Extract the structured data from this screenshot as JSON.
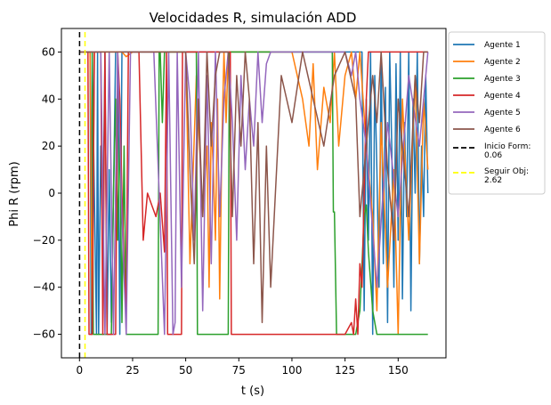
{
  "chart_data": {
    "type": "line",
    "title": "Velocidades R, simulación ADD",
    "xlabel": "t (s)",
    "ylabel": "Phi R (rpm)",
    "xlim": [
      -8.5,
      172.5
    ],
    "ylim": [
      -70,
      70
    ],
    "xticks": [
      0,
      25,
      50,
      75,
      100,
      125,
      150
    ],
    "yticks": [
      -60,
      -40,
      -20,
      0,
      20,
      40,
      60
    ],
    "grid": false,
    "legend_position": "outside-right",
    "series": [
      {
        "name": "Agente 1",
        "color": "#1f77b4",
        "style": "solid",
        "x": [
          0,
          5,
          5.5,
          6,
          8,
          8.5,
          9,
          10,
          11,
          12,
          13,
          14,
          15,
          16,
          17,
          18,
          19,
          20,
          22,
          25,
          30,
          40,
          60,
          80,
          100,
          120,
          133,
          134,
          135,
          136,
          137,
          138,
          139,
          140,
          141,
          142,
          143,
          144,
          145,
          146,
          147,
          148,
          149,
          150,
          151,
          152,
          153,
          154,
          155,
          156,
          157,
          158,
          159,
          160,
          161,
          162,
          163,
          164
        ],
        "y": [
          60,
          60,
          -60,
          60,
          -60,
          60,
          -60,
          20,
          -20,
          60,
          -60,
          10,
          -55,
          0,
          60,
          60,
          -60,
          60,
          60,
          60,
          60,
          60,
          60,
          60,
          60,
          60,
          60,
          -50,
          40,
          -20,
          60,
          -60,
          50,
          10,
          -40,
          60,
          -30,
          45,
          -55,
          60,
          20,
          -40,
          55,
          -20,
          60,
          -45,
          30,
          -10,
          60,
          -50,
          40,
          0,
          60,
          -30,
          20,
          -10,
          50,
          0
        ]
      },
      {
        "name": "Agente 2",
        "color": "#ff7f0e",
        "style": "solid",
        "x": [
          0,
          5,
          6,
          7,
          8,
          9,
          20,
          22,
          25,
          30,
          50,
          52,
          55,
          58,
          60,
          61,
          62,
          63,
          64,
          65,
          66,
          67,
          68,
          69,
          70,
          72,
          80,
          90,
          100,
          105,
          108,
          110,
          112,
          115,
          118,
          120,
          122,
          125,
          128,
          130,
          132,
          135,
          138,
          140,
          142,
          145,
          148,
          150,
          152,
          155,
          158,
          160,
          162,
          164
        ],
        "y": [
          60,
          60,
          -60,
          60,
          60,
          60,
          60,
          58,
          60,
          60,
          60,
          -30,
          50,
          -10,
          20,
          -40,
          30,
          10,
          -20,
          40,
          -45,
          20,
          60,
          30,
          60,
          60,
          60,
          60,
          60,
          40,
          20,
          55,
          10,
          45,
          30,
          60,
          20,
          50,
          60,
          40,
          60,
          20,
          -10,
          -50,
          30,
          -40,
          10,
          -60,
          40,
          -20,
          50,
          -30,
          40,
          10
        ]
      },
      {
        "name": "Agente 3",
        "color": "#2ca02c",
        "style": "solid",
        "x": [
          0,
          6,
          6.5,
          15,
          16,
          17,
          18,
          19,
          20,
          21,
          22,
          22.5,
          30,
          37,
          37.5,
          38,
          39,
          40,
          50,
          55,
          55.5,
          60,
          65,
          70,
          70.5,
          71,
          80,
          90,
          100,
          110,
          119,
          119.5,
          120,
          121,
          121.5,
          125,
          130,
          132,
          134,
          135,
          136,
          138,
          140,
          145,
          150,
          155,
          160,
          164
        ],
        "y": [
          60,
          60,
          -60,
          -60,
          0,
          40,
          -20,
          30,
          -55,
          20,
          -60,
          -60,
          -60,
          -60,
          60,
          60,
          30,
          60,
          60,
          60,
          -60,
          -60,
          -60,
          -60,
          60,
          60,
          60,
          60,
          60,
          60,
          60,
          -8,
          -8,
          -60,
          -60,
          -60,
          -60,
          -50,
          -10,
          -5,
          -25,
          -50,
          -60,
          -60,
          -60,
          -60,
          -60,
          -60
        ]
      },
      {
        "name": "Agente 4",
        "color": "#d62728",
        "style": "solid",
        "x": [
          0,
          4,
          4.5,
          6,
          7,
          7.5,
          10,
          11,
          12,
          13,
          13.5,
          17,
          18,
          19,
          20,
          21,
          22,
          23,
          24,
          25,
          28,
          30,
          32,
          34,
          36,
          38,
          40,
          41,
          41.5,
          48,
          48.5,
          55,
          60,
          65,
          68,
          70,
          71,
          71.5,
          75,
          77,
          79,
          80,
          85,
          90,
          100,
          110,
          120,
          125,
          128,
          129,
          130,
          131,
          132,
          133,
          134,
          135,
          136,
          138,
          140,
          145,
          150,
          155,
          160,
          164
        ],
        "y": [
          60,
          60,
          -60,
          -60,
          60,
          60,
          60,
          -60,
          60,
          -60,
          -60,
          -60,
          60,
          40,
          0,
          -30,
          -50,
          60,
          60,
          60,
          60,
          -20,
          0,
          -5,
          -10,
          0,
          -25,
          60,
          -60,
          -60,
          60,
          60,
          60,
          60,
          60,
          60,
          60,
          -60,
          -60,
          -60,
          -60,
          -60,
          -60,
          -60,
          -60,
          -60,
          -60,
          -60,
          -55,
          -60,
          -45,
          -60,
          -30,
          -40,
          0,
          40,
          60,
          60,
          60,
          60,
          60,
          60,
          60,
          60
        ]
      },
      {
        "name": "Agente 5",
        "color": "#9467bd",
        "style": "solid",
        "x": [
          0,
          10,
          12,
          14,
          16,
          18,
          20,
          22,
          24,
          26,
          28,
          30,
          35,
          40,
          42,
          44,
          45,
          46,
          48,
          50,
          52,
          54,
          56,
          58,
          60,
          62,
          64,
          66,
          68,
          70,
          72,
          74,
          76,
          78,
          80,
          82,
          84,
          86,
          88,
          90,
          95,
          100,
          105,
          110,
          115,
          120,
          125,
          128,
          130,
          132,
          135,
          140,
          145,
          150,
          155,
          160,
          164
        ],
        "y": [
          60,
          60,
          -60,
          60,
          -60,
          60,
          -10,
          -60,
          60,
          60,
          60,
          60,
          60,
          -60,
          60,
          -60,
          -55,
          60,
          -40,
          60,
          40,
          -20,
          60,
          -50,
          50,
          -30,
          60,
          -10,
          40,
          60,
          30,
          -20,
          50,
          10,
          40,
          20,
          60,
          30,
          55,
          60,
          60,
          60,
          60,
          60,
          60,
          60,
          60,
          50,
          60,
          40,
          20,
          -40,
          30,
          -10,
          50,
          20,
          60
        ]
      },
      {
        "name": "Agente 6",
        "color": "#8c564b",
        "style": "solid",
        "x": [
          0,
          20,
          30,
          40,
          45,
          50,
          52,
          54,
          56,
          58,
          60,
          62,
          64,
          66,
          68,
          70,
          72,
          74,
          76,
          78,
          80,
          82,
          84,
          86,
          88,
          90,
          95,
          100,
          105,
          110,
          115,
          120,
          125,
          130,
          132,
          135,
          138,
          140,
          142,
          145,
          148,
          150,
          152,
          155,
          158,
          160,
          162,
          164
        ],
        "y": [
          60,
          60,
          60,
          60,
          60,
          60,
          10,
          -30,
          40,
          -10,
          60,
          20,
          50,
          60,
          60,
          60,
          -10,
          50,
          20,
          60,
          40,
          -30,
          30,
          -55,
          20,
          -40,
          50,
          30,
          60,
          40,
          20,
          50,
          60,
          40,
          -10,
          20,
          50,
          30,
          60,
          10,
          -20,
          40,
          20,
          -10,
          50,
          30,
          60,
          60
        ]
      },
      {
        "name": "Inicio Form:\n0.06",
        "color": "#000000",
        "style": "dashed",
        "x": [
          0.06,
          0.06
        ],
        "y": [
          -70,
          70
        ]
      },
      {
        "name": "Seguir Obj:\n2.62",
        "color": "#ffff00",
        "style": "dashed",
        "x": [
          2.62,
          2.62
        ],
        "y": [
          -70,
          70
        ]
      }
    ]
  }
}
